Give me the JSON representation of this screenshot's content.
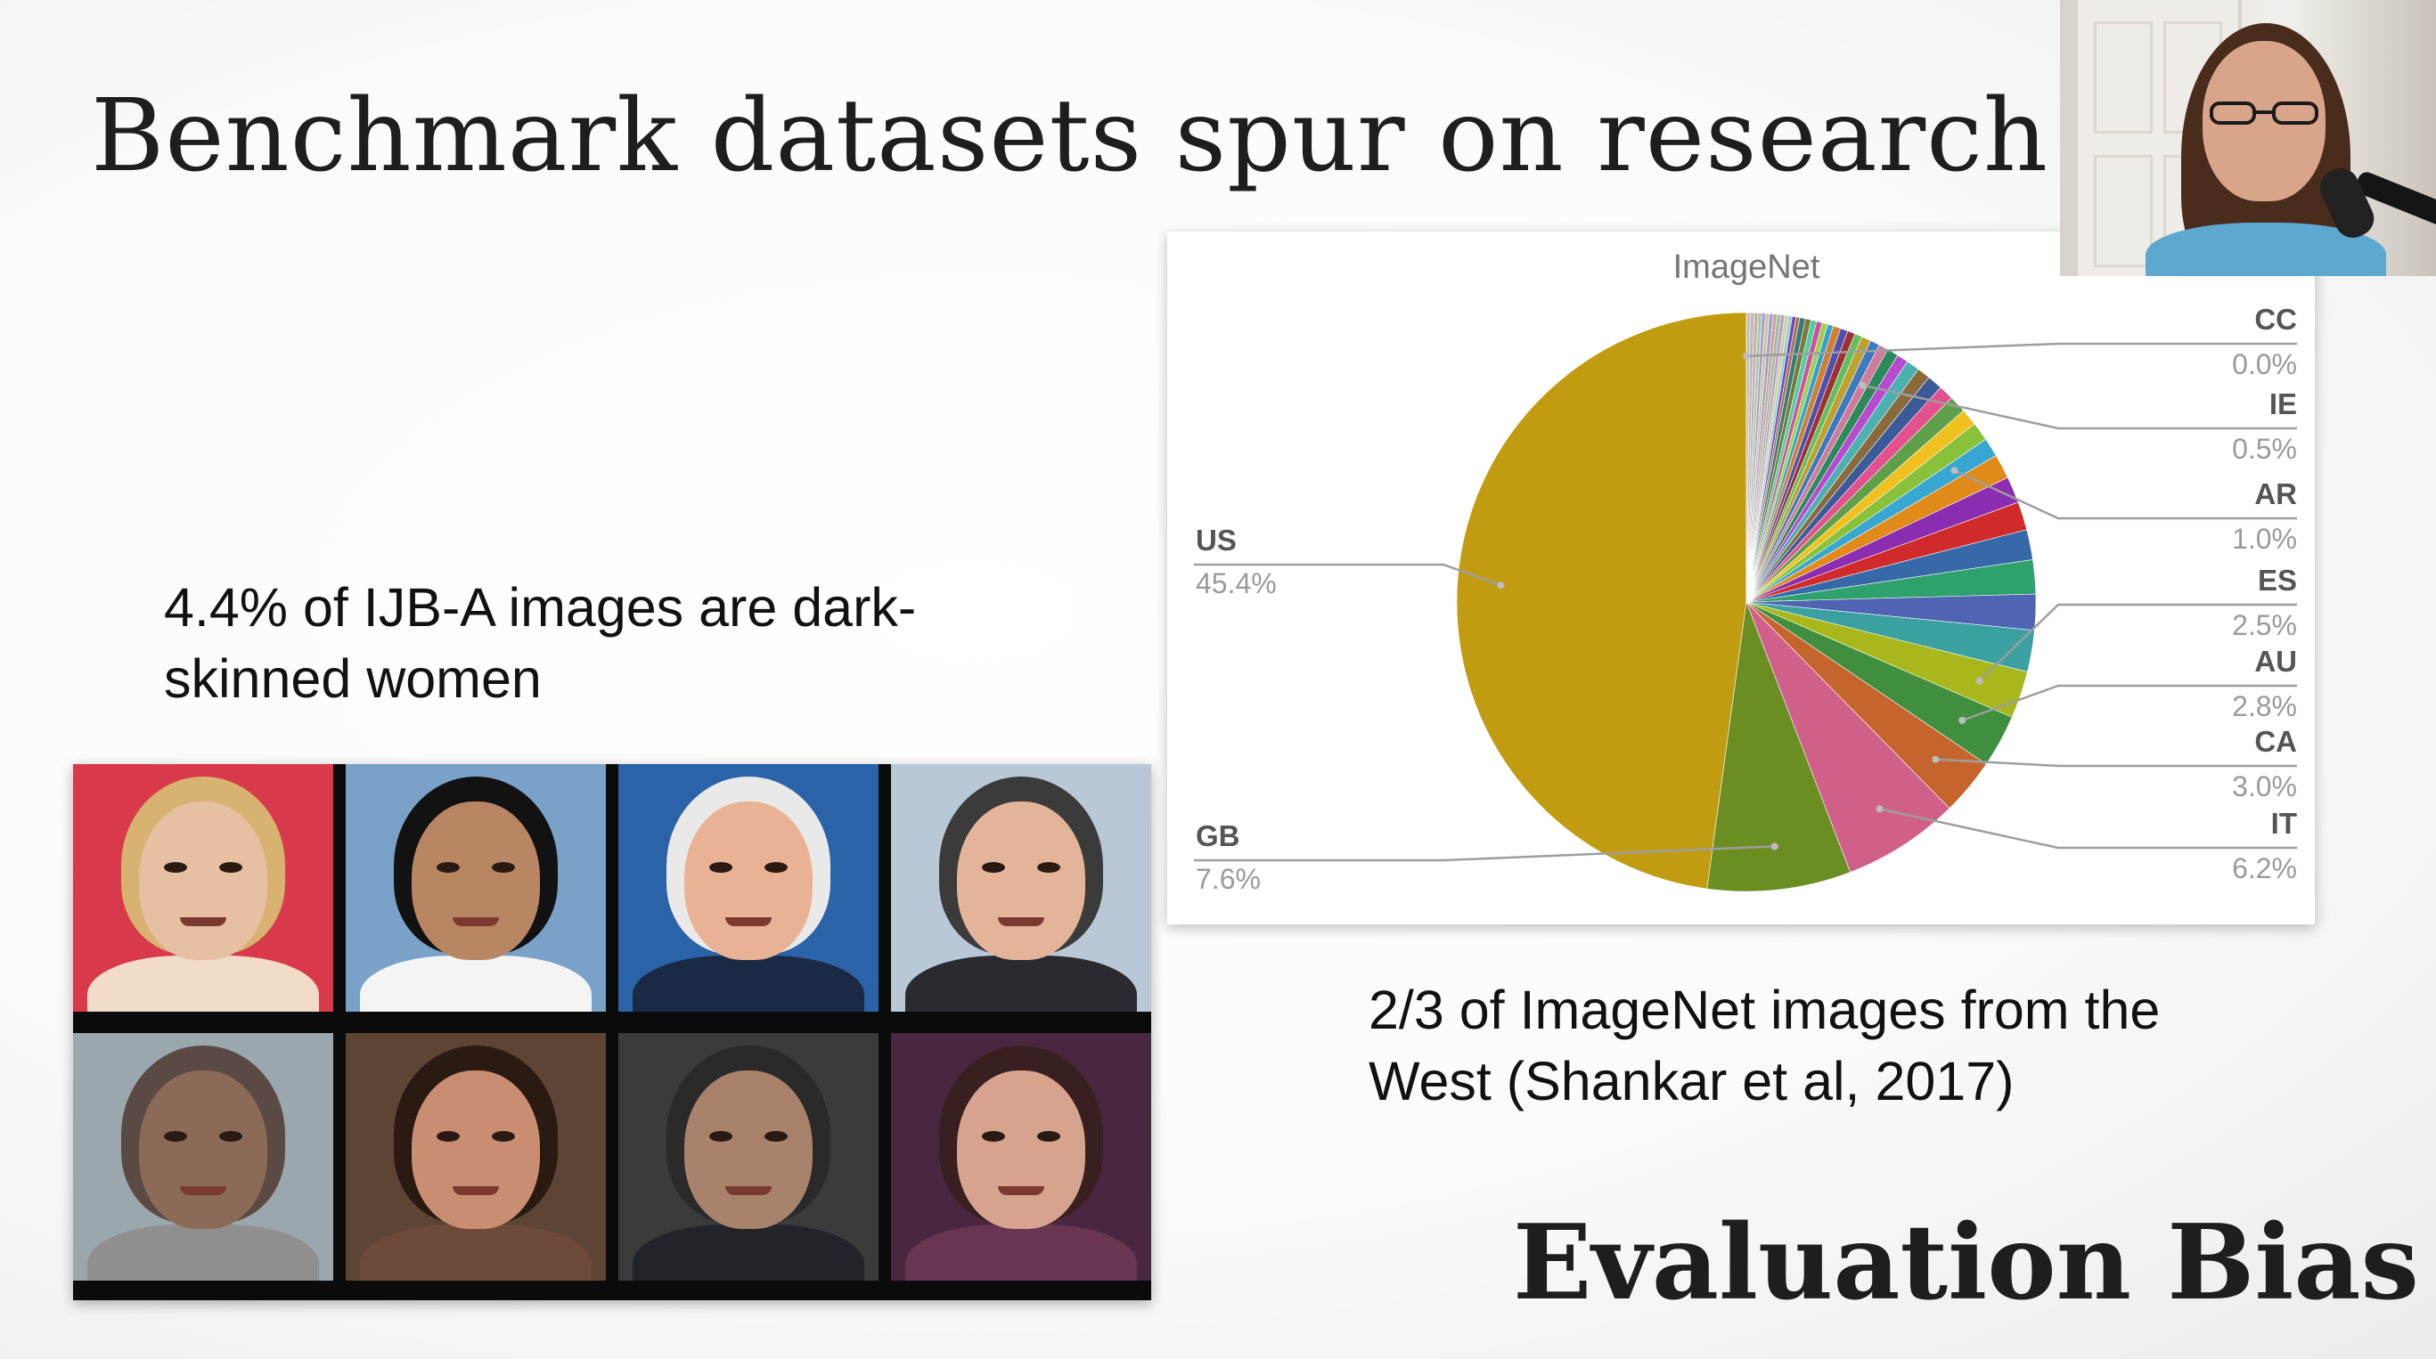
{
  "slide": {
    "title": "Benchmark datasets spur on research",
    "caption_left": "4.4% of IJB-A images are dark-skinned women",
    "caption_right": "2/3 of ImageNet images from the West (Shankar et al, 2017)",
    "footer_title": "Evaluation Bias"
  },
  "faces": [
    {
      "bg": "#d83a4c",
      "skin": "#e7bfa2",
      "hair": "#d7b271",
      "clothes": "#f2dcc8"
    },
    {
      "bg": "#7aa2c8",
      "skin": "#b98664",
      "hair": "#121212",
      "clothes": "#f4f4f4"
    },
    {
      "bg": "#2a63a8",
      "skin": "#eab295",
      "hair": "#e9e9e9",
      "clothes": "#1b2a44"
    },
    {
      "bg": "#b9c8d6",
      "skin": "#e4b49a",
      "hair": "#3b3b3b",
      "clothes": "#2a2a30"
    },
    {
      "bg": "#9aa7ad",
      "skin": "#8c6a58",
      "hair": "#5b4a44",
      "clothes": "#8f8f8f"
    },
    {
      "bg": "#5d4434",
      "skin": "#c98e72",
      "hair": "#2a1a12",
      "clothes": "#6e4a3a"
    },
    {
      "bg": "#3b3b3b",
      "skin": "#a8826a",
      "hair": "#2a2a2a",
      "clothes": "#23232a"
    },
    {
      "bg": "#4a2740",
      "skin": "#d6a48e",
      "hair": "#3a1f20",
      "clothes": "#6a3550"
    }
  ],
  "chart_data": {
    "type": "pie",
    "title": "ImageNet",
    "slices": [
      {
        "label": "US",
        "value": 45.4,
        "color": "#c19c11"
      },
      {
        "label": "GB",
        "value": 7.6,
        "color": "#6b8e23"
      },
      {
        "label": "IT",
        "value": 6.2,
        "color": "#d0608a"
      },
      {
        "label": "CA",
        "value": 3.0,
        "color": "#c6642e"
      },
      {
        "label": "AU",
        "value": 2.8,
        "color": "#3f8f3f"
      },
      {
        "label": "ES",
        "value": 2.5,
        "color": "#a8b81c"
      },
      {
        "label": "",
        "value": 2.2,
        "color": "#3aa0a0"
      },
      {
        "label": "",
        "value": 1.9,
        "color": "#4f64b3"
      },
      {
        "label": "",
        "value": 1.8,
        "color": "#2fa16c"
      },
      {
        "label": "",
        "value": 1.6,
        "color": "#3769a8"
      },
      {
        "label": "",
        "value": 1.5,
        "color": "#d02a2a"
      },
      {
        "label": "",
        "value": 1.4,
        "color": "#8a2db0"
      },
      {
        "label": "",
        "value": 1.3,
        "color": "#e08a1a"
      },
      {
        "label": "AR",
        "value": 1.0,
        "color": "#37a6d0"
      },
      {
        "label": "",
        "value": 1.0,
        "color": "#89c23a"
      },
      {
        "label": "",
        "value": 0.9,
        "color": "#f0c01f"
      },
      {
        "label": "",
        "value": 0.9,
        "color": "#5ea04a"
      },
      {
        "label": "",
        "value": 0.8,
        "color": "#e4508c"
      },
      {
        "label": "",
        "value": 0.8,
        "color": "#3a5a9a"
      },
      {
        "label": "",
        "value": 0.7,
        "color": "#8a6a3a"
      },
      {
        "label": "",
        "value": 0.7,
        "color": "#4bb0b0"
      },
      {
        "label": "",
        "value": 0.6,
        "color": "#b84ad0"
      },
      {
        "label": "",
        "value": 0.6,
        "color": "#2a8a5a"
      },
      {
        "label": "IE",
        "value": 0.5,
        "color": "#d07a9a"
      },
      {
        "label": "",
        "value": 0.5,
        "color": "#3a7ac0"
      },
      {
        "label": "",
        "value": 0.5,
        "color": "#c0a030"
      },
      {
        "label": "",
        "value": 0.4,
        "color": "#60c060"
      },
      {
        "label": "",
        "value": 0.4,
        "color": "#a03030"
      },
      {
        "label": "",
        "value": 0.4,
        "color": "#5050b0"
      },
      {
        "label": "",
        "value": 0.4,
        "color": "#d08030"
      },
      {
        "label": "",
        "value": 0.3,
        "color": "#30a0d0"
      },
      {
        "label": "",
        "value": 0.3,
        "color": "#a0d050"
      },
      {
        "label": "",
        "value": 0.3,
        "color": "#d050a0"
      },
      {
        "label": "",
        "value": 0.3,
        "color": "#50d0a0"
      },
      {
        "label": "",
        "value": 0.3,
        "color": "#7a7a3a"
      },
      {
        "label": "",
        "value": 0.3,
        "color": "#3a7a7a"
      },
      {
        "label": "",
        "value": 0.2,
        "color": "#b07050"
      },
      {
        "label": "",
        "value": 0.2,
        "color": "#6a4ac0"
      },
      {
        "label": "",
        "value": 0.2,
        "color": "#9ad0d0"
      },
      {
        "label": "",
        "value": 0.2,
        "color": "#d0d09a"
      },
      {
        "label": "",
        "value": 0.2,
        "color": "#c09ad0"
      },
      {
        "label": "",
        "value": 0.2,
        "color": "#9ac09a"
      },
      {
        "label": "",
        "value": 0.2,
        "color": "#d0a09a"
      },
      {
        "label": "",
        "value": 0.2,
        "color": "#a0a0d0"
      },
      {
        "label": "",
        "value": 0.2,
        "color": "#c8c8a0"
      },
      {
        "label": "",
        "value": 0.2,
        "color": "#b0a0c8"
      },
      {
        "label": "",
        "value": 0.2,
        "color": "#a8c8b8"
      },
      {
        "label": "",
        "value": 0.2,
        "color": "#c8b0a0"
      },
      {
        "label": "",
        "value": 0.2,
        "color": "#b8b8c8"
      },
      {
        "label": "",
        "value": 0.2,
        "color": "#c8c0b0"
      },
      {
        "label": "CC",
        "value": 0.0,
        "color": "#c8c8c8"
      }
    ],
    "callouts": [
      {
        "label": "US",
        "pct": "45.4%",
        "side": "left"
      },
      {
        "label": "GB",
        "pct": "7.6%",
        "side": "left"
      },
      {
        "label": "CC",
        "pct": "0.0%",
        "side": "right"
      },
      {
        "label": "IE",
        "pct": "0.5%",
        "side": "right"
      },
      {
        "label": "AR",
        "pct": "1.0%",
        "side": "right"
      },
      {
        "label": "ES",
        "pct": "2.5%",
        "side": "right"
      },
      {
        "label": "AU",
        "pct": "2.8%",
        "side": "right"
      },
      {
        "label": "CA",
        "pct": "3.0%",
        "side": "right"
      },
      {
        "label": "IT",
        "pct": "6.2%",
        "side": "right"
      }
    ]
  }
}
